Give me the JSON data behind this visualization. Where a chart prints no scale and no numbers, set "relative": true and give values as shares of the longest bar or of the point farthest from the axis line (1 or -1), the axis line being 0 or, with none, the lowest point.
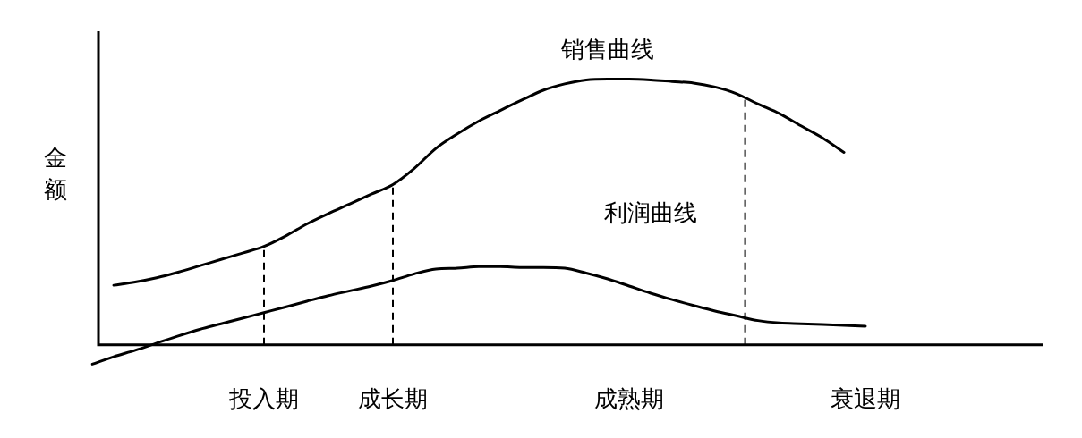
{
  "chart_data": {
    "type": "line",
    "ylabel": "金额",
    "relative": true,
    "marker": "none",
    "line_style": "solid",
    "grid": false,
    "legend": false,
    "categories": [
      null,
      null,
      null,
      null,
      null,
      null,
      null,
      null,
      "投入期",
      null,
      null,
      null,
      null,
      null,
      "成长期",
      null,
      null,
      null,
      null,
      null,
      null,
      null,
      null,
      null,
      null,
      "成熟期",
      null,
      null,
      null,
      null,
      null,
      null,
      null,
      null,
      null,
      null,
      "衰退期",
      null,
      null,
      null,
      null,
      null,
      null,
      null,
      null
    ],
    "series": [
      {
        "name": "销售曲线",
        "color": "#000000",
        "values": [
          null,
          0.224,
          0.236,
          0.252,
          0.273,
          0.297,
          0.321,
          0.345,
          0.37,
          0.409,
          0.455,
          0.494,
          0.53,
          0.567,
          0.603,
          0.664,
          0.739,
          0.794,
          0.842,
          0.882,
          0.921,
          0.958,
          0.982,
          0.997,
          1,
          1,
          0.997,
          0.991,
          0.985,
          0.97,
          0.945,
          0.906,
          0.87,
          0.824,
          0.779,
          0.724,
          null,
          null,
          null,
          null,
          null,
          null,
          null,
          null,
          null
        ]
      },
      {
        "name": "利润曲线",
        "color": "#000000",
        "values": [
          -0.073,
          -0.045,
          -0.021,
          0.006,
          0.033,
          0.058,
          0.079,
          0.1,
          0.121,
          0.142,
          0.164,
          0.185,
          0.203,
          0.221,
          0.242,
          0.267,
          0.285,
          0.288,
          0.294,
          0.294,
          0.291,
          0.291,
          0.288,
          0.27,
          0.248,
          0.221,
          0.194,
          0.17,
          0.148,
          0.127,
          0.109,
          0.091,
          0.082,
          0.079,
          0.076,
          0.073,
          0.07,
          null,
          null,
          null,
          null,
          null,
          null,
          null,
          null
        ]
      }
    ],
    "ref_lines": [
      {
        "axis": "x",
        "value": "投入期",
        "line_style": "dashed"
      },
      {
        "axis": "x",
        "value": "成长期",
        "line_style": "dashed"
      }
    ]
  }
}
